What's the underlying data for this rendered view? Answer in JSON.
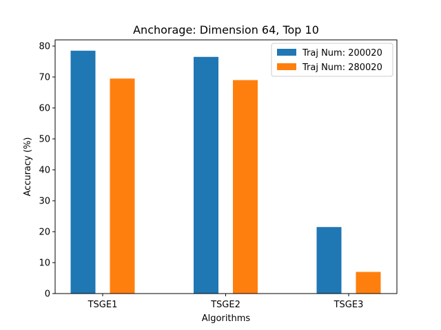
{
  "chart_data": {
    "type": "bar",
    "title": "Anchorage: Dimension 64, Top 10",
    "xlabel": "Algorithms",
    "ylabel": "Accuracy (%)",
    "categories": [
      "TSGE1",
      "TSGE2",
      "TSGE3"
    ],
    "series": [
      {
        "name": "Traj Num: 200020",
        "color": "#1f77b4",
        "values": [
          78.5,
          76.5,
          21.5
        ]
      },
      {
        "name": "Traj Num: 280020",
        "color": "#ff7f0e",
        "values": [
          69.5,
          69.0,
          7.0
        ]
      }
    ],
    "ylim": [
      0,
      82
    ],
    "yticks": [
      0,
      10,
      20,
      30,
      40,
      50,
      60,
      70,
      80
    ],
    "grid": false,
    "legend_position": "top-right"
  }
}
